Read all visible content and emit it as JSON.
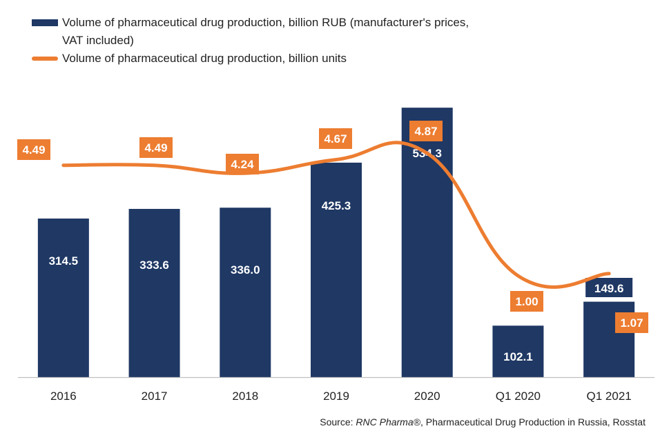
{
  "chart_data": {
    "type": "bar",
    "categories": [
      "2016",
      "2017",
      "2018",
      "2019",
      "2020",
      "Q1 2020",
      "Q1 2021"
    ],
    "series": [
      {
        "name": "Volume of pharmaceutical drug production, billion RUB (manufacturer's prices, VAT included)",
        "type": "bar",
        "axis": "left",
        "values": [
          314.5,
          333.6,
          336.0,
          425.3,
          534.3,
          102.1,
          149.6
        ],
        "labels": [
          "314.5",
          "333.6",
          "336.0",
          "425.3",
          "534.3",
          "102.1",
          "149.6"
        ],
        "color": "#1f3864"
      },
      {
        "name": "Volume of pharmaceutical drug production, billion units",
        "type": "line",
        "axis": "right",
        "values": [
          4.49,
          4.49,
          4.24,
          4.67,
          4.87,
          1.0,
          1.07
        ],
        "labels": [
          "4.49",
          "4.49",
          "4.24",
          "4.67",
          "4.87",
          "1.00",
          "1.07"
        ],
        "color": "#ed7d31"
      }
    ],
    "ylim_left": [
      0,
      540
    ],
    "ylim_right": [
      -2.2,
      6.4
    ],
    "grid": false,
    "legend_position": "top-left"
  },
  "source": {
    "prefix": "Source: ",
    "italic": "RNC Pharma®",
    "suffix": ", Pharmaceutical Drug Production in Russia, Rosstat"
  }
}
